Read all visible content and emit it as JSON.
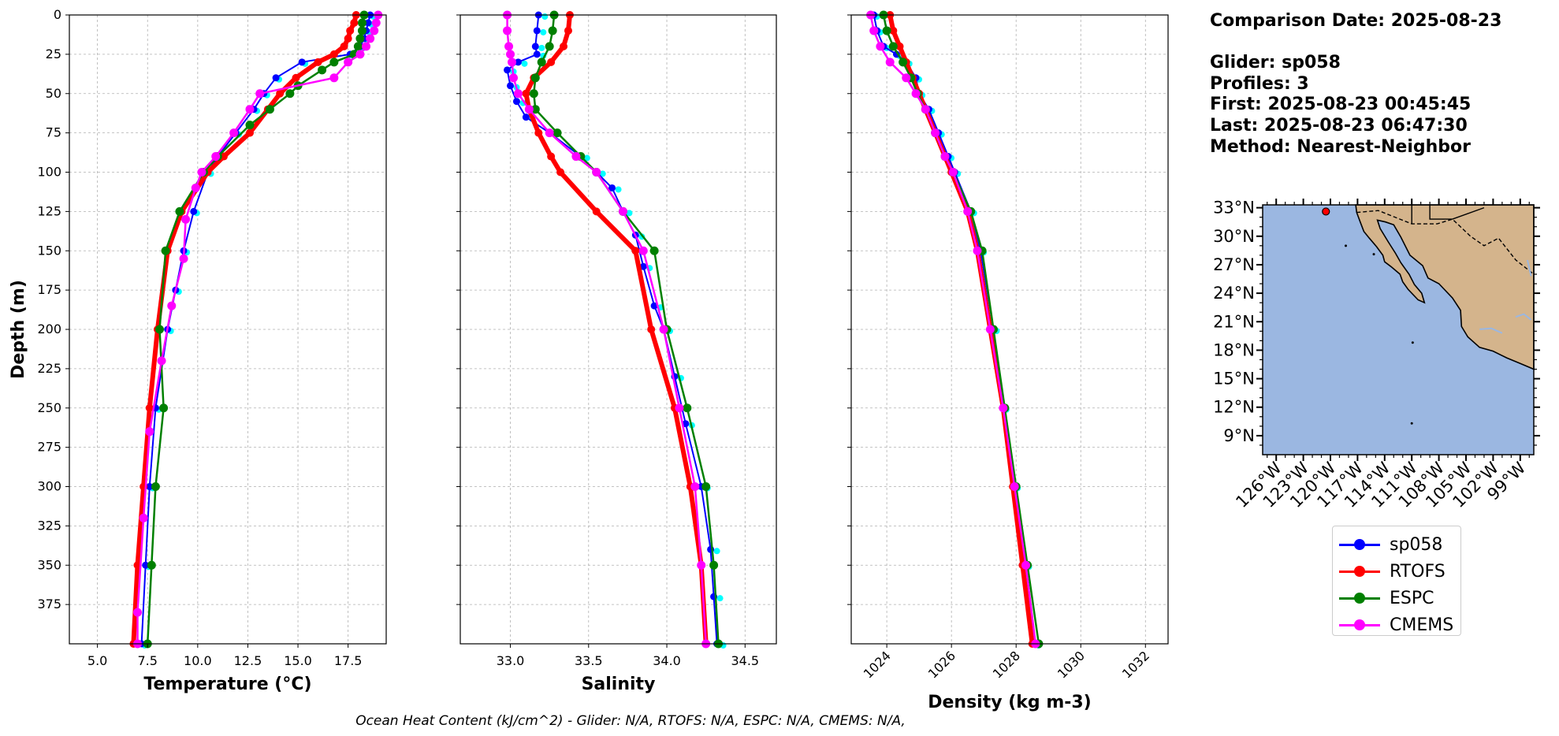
{
  "info": {
    "comparison_date": "Comparison Date: 2025-08-23",
    "glider": "Glider: sp058",
    "profiles": "Profiles: 3",
    "first": "First: 2025-08-23 00:45:45",
    "last": "Last: 2025-08-23 06:47:30",
    "method": "Method: Nearest-Neighbor"
  },
  "footer": "Ocean Heat Content (kJ/cm^2) - Glider: N/A,  RTOFS: N/A,  ESPC: N/A,  CMEMS: N/A,",
  "colors": {
    "glider": "#0000ff",
    "glider_raw": "#00ffff",
    "rtofs": "#ff0000",
    "espc": "#008000",
    "cmems": "#ff00ff",
    "map_ocean": "#9bb7e1",
    "map_land": "#d4b48c"
  },
  "legend": [
    {
      "label": "sp058",
      "color": "#0000ff"
    },
    {
      "label": "RTOFS",
      "color": "#ff0000"
    },
    {
      "label": "ESPC",
      "color": "#008000"
    },
    {
      "label": "CMEMS",
      "color": "#ff00ff"
    }
  ],
  "map": {
    "lat_ticks": [
      "33°N",
      "30°N",
      "27°N",
      "24°N",
      "21°N",
      "18°N",
      "15°N",
      "12°N",
      "9°N"
    ],
    "lon_ticks": [
      "126°W",
      "123°W",
      "120°W",
      "117°W",
      "114°W",
      "111°W",
      "108°W",
      "105°W",
      "102°W",
      "99°W"
    ],
    "glider_position": {
      "lon": -120.5,
      "lat": 32.6
    }
  },
  "chart_data": [
    {
      "type": "line",
      "xlabel": "Temperature (°C)",
      "ylabel": "Depth (m)",
      "xlim": [
        3.6,
        19.4
      ],
      "ylim": [
        400,
        0
      ],
      "xticks": [
        "5.0",
        "7.5",
        "10.0",
        "12.5",
        "15.0",
        "17.5"
      ],
      "yticks": [
        "0",
        "25",
        "50",
        "75",
        "100",
        "125",
        "150",
        "175",
        "200",
        "225",
        "250",
        "275",
        "300",
        "325",
        "350",
        "375"
      ],
      "grid": true,
      "series": [
        {
          "name": "sp058",
          "depth": [
            0,
            5,
            10,
            15,
            20,
            25,
            30,
            40,
            50,
            60,
            75,
            90,
            100,
            125,
            150,
            175,
            200,
            250,
            300,
            350,
            400
          ],
          "values": [
            18.6,
            18.5,
            18.4,
            18.3,
            18.1,
            17.6,
            15.2,
            13.9,
            13.3,
            12.8,
            11.9,
            11.0,
            10.5,
            9.8,
            9.3,
            8.9,
            8.5,
            7.9,
            7.6,
            7.4,
            7.2
          ]
        },
        {
          "name": "RTOFS",
          "depth": [
            0,
            5,
            10,
            15,
            20,
            25,
            30,
            40,
            50,
            60,
            75,
            90,
            100,
            125,
            150,
            200,
            250,
            300,
            350,
            400
          ],
          "values": [
            17.9,
            17.8,
            17.6,
            17.5,
            17.3,
            16.8,
            16.0,
            14.9,
            14.1,
            13.5,
            12.6,
            11.3,
            10.5,
            9.2,
            8.5,
            8.0,
            7.6,
            7.3,
            7.0,
            6.8
          ]
        },
        {
          "name": "ESPC",
          "depth": [
            0,
            5,
            10,
            15,
            20,
            25,
            30,
            35,
            45,
            50,
            60,
            70,
            90,
            100,
            125,
            150,
            200,
            250,
            300,
            350,
            400
          ],
          "values": [
            18.3,
            18.2,
            18.2,
            18.1,
            18.0,
            17.8,
            16.8,
            16.2,
            15.0,
            14.6,
            13.6,
            12.6,
            11.0,
            10.3,
            9.1,
            8.4,
            8.1,
            8.3,
            7.9,
            7.7,
            7.5
          ]
        },
        {
          "name": "CMEMS",
          "depth": [
            0,
            5,
            10,
            15,
            20,
            25,
            30,
            40,
            50,
            60,
            75,
            90,
            100,
            110,
            130,
            155,
            185,
            220,
            265,
            320,
            380,
            400
          ],
          "values": [
            19.0,
            18.9,
            18.8,
            18.6,
            18.4,
            18.1,
            17.5,
            16.8,
            13.1,
            12.6,
            11.8,
            10.9,
            10.2,
            9.9,
            9.4,
            9.3,
            8.7,
            8.2,
            7.6,
            7.3,
            7.0,
            7.0
          ]
        }
      ]
    },
    {
      "type": "line",
      "xlabel": "Salinity",
      "ylabel": "",
      "xlim": [
        32.68,
        34.7
      ],
      "ylim": [
        400,
        0
      ],
      "xticks": [
        "33.0",
        "33.5",
        "34.0",
        "34.5"
      ],
      "grid": true,
      "series": [
        {
          "name": "sp058",
          "depth": [
            0,
            10,
            20,
            25,
            30,
            35,
            45,
            55,
            65,
            75,
            90,
            100,
            110,
            125,
            140,
            160,
            185,
            200,
            230,
            260,
            300,
            340,
            370,
            400
          ],
          "values": [
            33.18,
            33.17,
            33.16,
            33.17,
            33.05,
            32.98,
            33.0,
            33.04,
            33.1,
            33.25,
            33.45,
            33.55,
            33.65,
            33.72,
            33.8,
            33.85,
            33.92,
            33.98,
            34.05,
            34.12,
            34.22,
            34.28,
            34.3,
            34.32
          ]
        },
        {
          "name": "RTOFS",
          "depth": [
            0,
            10,
            20,
            30,
            40,
            50,
            60,
            75,
            90,
            100,
            125,
            150,
            200,
            250,
            300,
            350,
            400
          ],
          "values": [
            33.38,
            33.37,
            33.34,
            33.26,
            33.15,
            33.1,
            33.12,
            33.18,
            33.26,
            33.32,
            33.55,
            33.8,
            33.9,
            34.05,
            34.15,
            34.22,
            34.25
          ]
        },
        {
          "name": "ESPC",
          "depth": [
            0,
            10,
            20,
            30,
            40,
            50,
            60,
            75,
            90,
            100,
            125,
            150,
            200,
            250,
            300,
            350,
            400
          ],
          "values": [
            33.28,
            33.27,
            33.25,
            33.2,
            33.16,
            33.15,
            33.16,
            33.3,
            33.45,
            33.55,
            33.72,
            33.92,
            34.0,
            34.13,
            34.25,
            34.3,
            34.33
          ]
        },
        {
          "name": "CMEMS",
          "depth": [
            0,
            10,
            20,
            25,
            30,
            40,
            50,
            60,
            75,
            90,
            100,
            125,
            150,
            200,
            250,
            300,
            350,
            400
          ],
          "values": [
            32.98,
            32.98,
            32.99,
            33.0,
            33.01,
            33.02,
            33.05,
            33.12,
            33.25,
            33.42,
            33.55,
            33.72,
            33.85,
            33.98,
            34.08,
            34.18,
            34.22,
            34.25
          ]
        }
      ]
    },
    {
      "type": "line",
      "xlabel": "Density (kg m-3)",
      "ylabel": "",
      "xlim": [
        1022.9,
        1032.7
      ],
      "ylim": [
        400,
        0
      ],
      "xticks": [
        "1024",
        "1026",
        "1028",
        "1030",
        "1032"
      ],
      "grid": true,
      "series": [
        {
          "name": "sp058",
          "depth": [
            0,
            10,
            20,
            25,
            30,
            40,
            50,
            60,
            75,
            90,
            100,
            125,
            150,
            200,
            250,
            300,
            350,
            400
          ],
          "values": [
            1023.6,
            1023.7,
            1023.9,
            1024.3,
            1024.6,
            1024.9,
            1025.0,
            1025.3,
            1025.6,
            1025.9,
            1026.1,
            1026.6,
            1026.9,
            1027.3,
            1027.6,
            1027.95,
            1028.3,
            1028.6
          ]
        },
        {
          "name": "RTOFS",
          "depth": [
            0,
            10,
            20,
            30,
            40,
            50,
            60,
            75,
            90,
            100,
            125,
            150,
            200,
            250,
            300,
            350,
            400
          ],
          "values": [
            1024.1,
            1024.2,
            1024.4,
            1024.6,
            1024.8,
            1025.0,
            1025.2,
            1025.5,
            1025.8,
            1026.0,
            1026.5,
            1026.8,
            1027.2,
            1027.6,
            1027.9,
            1028.2,
            1028.5
          ]
        },
        {
          "name": "ESPC",
          "depth": [
            0,
            10,
            20,
            30,
            40,
            50,
            60,
            75,
            90,
            100,
            125,
            150,
            200,
            250,
            300,
            350,
            400
          ],
          "values": [
            1023.9,
            1024.0,
            1024.2,
            1024.5,
            1024.75,
            1024.95,
            1025.2,
            1025.5,
            1025.8,
            1026.05,
            1026.6,
            1026.95,
            1027.3,
            1027.65,
            1028.0,
            1028.35,
            1028.7
          ]
        },
        {
          "name": "CMEMS",
          "depth": [
            0,
            10,
            20,
            30,
            40,
            50,
            60,
            75,
            90,
            100,
            125,
            150,
            200,
            250,
            300,
            350,
            400
          ],
          "values": [
            1023.5,
            1023.6,
            1023.8,
            1024.1,
            1024.6,
            1024.9,
            1025.2,
            1025.5,
            1025.8,
            1026.05,
            1026.5,
            1026.8,
            1027.2,
            1027.6,
            1027.95,
            1028.3,
            1028.6
          ]
        }
      ]
    }
  ]
}
